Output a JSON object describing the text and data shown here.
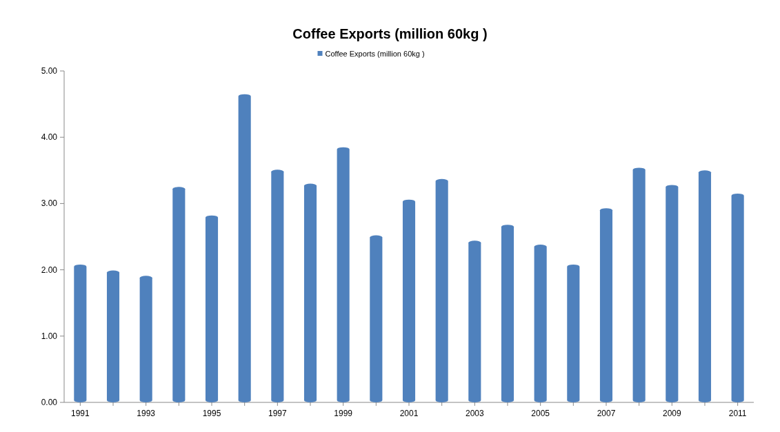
{
  "chart_data": {
    "type": "bar",
    "title": "Coffee Exports (million 60kg )",
    "categories": [
      "1991",
      null,
      "1993",
      null,
      "1995",
      null,
      "1997",
      null,
      "1999",
      null,
      "2001",
      null,
      "2003",
      null,
      "2005",
      null,
      "2007",
      null,
      "2009",
      null,
      "2011"
    ],
    "series": [
      {
        "name": "Coffee Exports (million 60kg )",
        "color": "#4f81bd",
        "values": [
          2.08,
          1.99,
          1.91,
          3.25,
          2.82,
          4.65,
          3.51,
          3.3,
          3.85,
          2.52,
          3.06,
          3.37,
          2.44,
          2.68,
          2.38,
          2.08,
          2.93,
          3.54,
          3.28,
          3.5,
          3.15
        ]
      }
    ],
    "ylim": [
      0,
      5
    ],
    "yticks": [
      {
        "value": 0,
        "label": "0.00"
      },
      {
        "value": 1,
        "label": "1.00"
      },
      {
        "value": 2,
        "label": "2.00"
      },
      {
        "value": 3,
        "label": "3.00"
      },
      {
        "value": 4,
        "label": "4.00"
      },
      {
        "value": 5,
        "label": "5.00"
      }
    ],
    "legend": "top"
  }
}
